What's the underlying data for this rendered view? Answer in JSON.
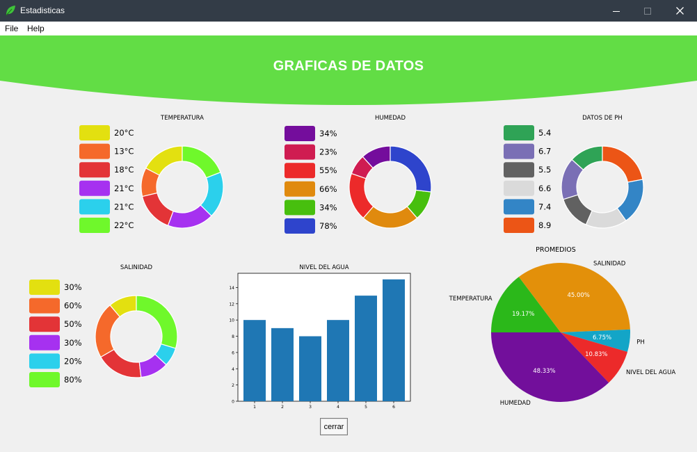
{
  "window": {
    "title": "Estadisticas",
    "icon": "leaf-icon"
  },
  "menu": {
    "items": [
      "File",
      "Help"
    ]
  },
  "banner": {
    "title": "GRAFICAS DE DATOS",
    "color": "#62dd45"
  },
  "close_button": {
    "label": "cerrar"
  },
  "chart_data": [
    {
      "type": "pie",
      "title": "TEMPERATURA",
      "donut": true,
      "legend_labels": [
        "20°C",
        "13°C",
        "18°C",
        "21°C",
        "21°C",
        "22°C"
      ],
      "values": [
        20,
        13,
        18,
        21,
        21,
        22
      ],
      "colors": [
        "#e3e010",
        "#f5692b",
        "#e33437",
        "#a631f0",
        "#2bd0ec",
        "#6ff82b"
      ],
      "legend": "left"
    },
    {
      "type": "pie",
      "title": "HUMEDAD",
      "donut": true,
      "legend_labels": [
        "34%",
        "23%",
        "55%",
        "66%",
        "34%",
        "78%"
      ],
      "values": [
        34,
        23,
        55,
        66,
        34,
        78
      ],
      "colors": [
        "#740d9c",
        "#cf1c51",
        "#ec2a2a",
        "#e08a0e",
        "#47bf0e",
        "#2e44cc"
      ],
      "legend": "left"
    },
    {
      "type": "pie",
      "title": "DATOS DE PH",
      "donut": true,
      "legend_labels": [
        "5.4",
        "6.7",
        "5.5",
        "6.6",
        "7.4",
        "8.9"
      ],
      "values": [
        5.4,
        6.7,
        5.5,
        6.6,
        7.4,
        8.9
      ],
      "colors": [
        "#2fa356",
        "#7a6fb5",
        "#616161",
        "#dadada",
        "#3385c6",
        "#ec5516"
      ],
      "legend": "left"
    },
    {
      "type": "pie",
      "title": "SALINIDAD",
      "donut": true,
      "legend_labels": [
        "30%",
        "60%",
        "50%",
        "30%",
        "20%",
        "80%"
      ],
      "values": [
        30,
        60,
        50,
        30,
        20,
        80
      ],
      "colors": [
        "#e3e010",
        "#f5692b",
        "#e33437",
        "#a631f0",
        "#2bd0ec",
        "#6ff82b"
      ],
      "legend": "left"
    },
    {
      "type": "bar",
      "title": "NIVEL DEL AGUA",
      "categories": [
        "1",
        "2",
        "3",
        "4",
        "5",
        "6"
      ],
      "values": [
        10,
        9,
        8,
        10,
        13,
        15
      ],
      "yticks": [
        "0",
        "2",
        "4",
        "6",
        "8",
        "10",
        "12",
        "14"
      ],
      "ylim": [
        0,
        15.75
      ],
      "color": "#1f77b4"
    },
    {
      "type": "pie",
      "title": "PROMEDIOS",
      "labels": [
        "TEMPERATURA",
        "SALINIDAD",
        "PH",
        "NIVEL DEL AGUA",
        "HUMEDAD"
      ],
      "pct_labels": [
        "19.17%",
        "45.00%",
        "6.75%",
        "10.83%",
        "48.33%"
      ],
      "values": [
        19.17,
        45.0,
        6.75,
        10.83,
        48.33
      ],
      "colors": [
        "#2bb81a",
        "#e3900a",
        "#13a5c7",
        "#ec2a2a",
        "#720f9b"
      ]
    }
  ]
}
